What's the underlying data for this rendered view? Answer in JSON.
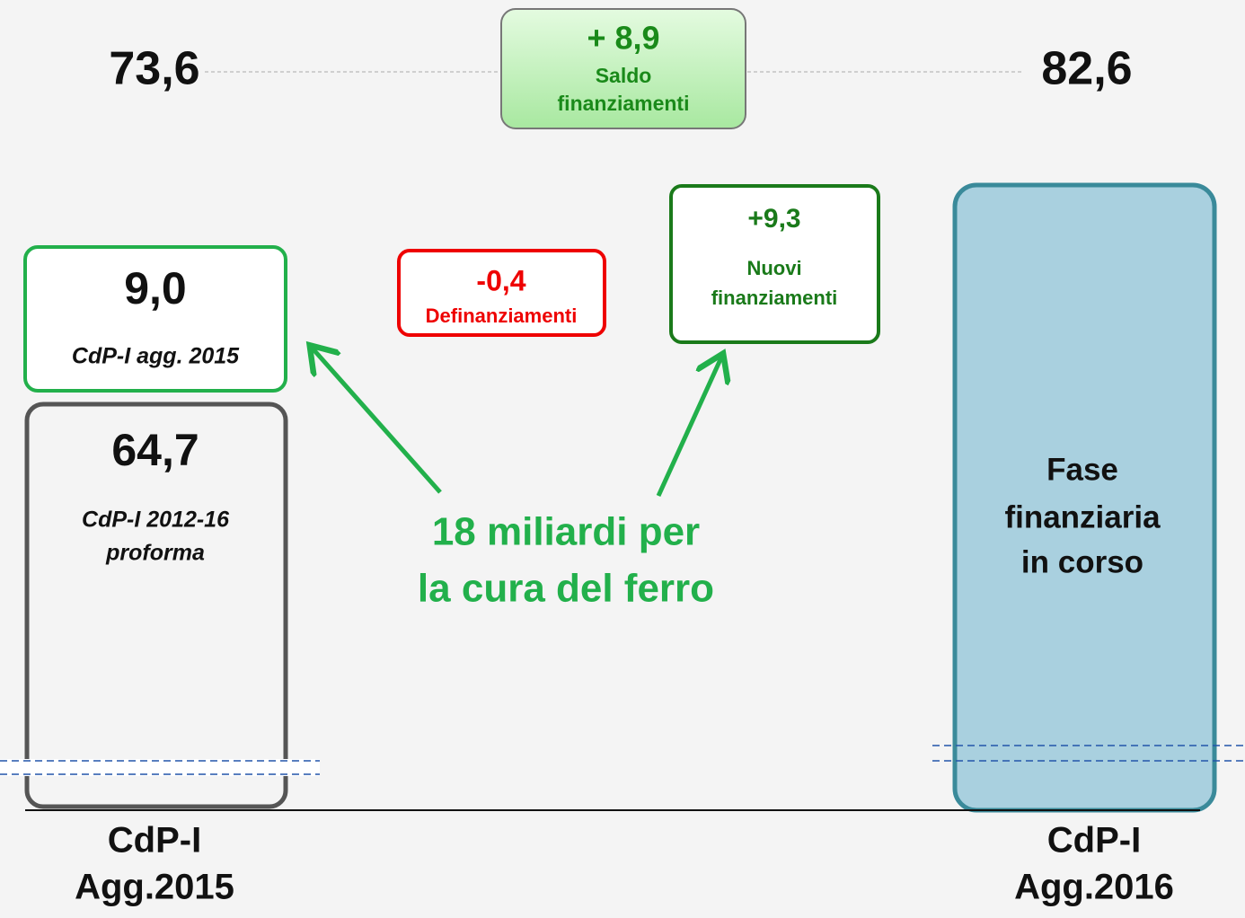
{
  "totals": {
    "left": "73,6",
    "right": "82,6"
  },
  "saldo": {
    "value": "+ 8,9",
    "label": [
      "Saldo",
      "finanziamenti"
    ]
  },
  "agg2015": {
    "value": "9,0",
    "label": "CdP-I agg. 2015"
  },
  "proforma": {
    "value": "64,7",
    "label": [
      "CdP-I 2012-16",
      "proforma"
    ]
  },
  "definanziamenti": {
    "value": "-0,4",
    "label": "Definanziamenti"
  },
  "nuovi": {
    "value": "+9,3",
    "label": [
      "Nuovi",
      "finanziamenti"
    ]
  },
  "fase": {
    "label": [
      "Fase",
      "finanziaria",
      "in corso"
    ]
  },
  "message": [
    "18 miliardi per",
    "la cura del ferro"
  ],
  "columns": [
    {
      "label": [
        "CdP-I",
        "Agg.2015"
      ]
    },
    {
      "label": [
        "CdP-I",
        "Agg.2016"
      ]
    }
  ]
}
